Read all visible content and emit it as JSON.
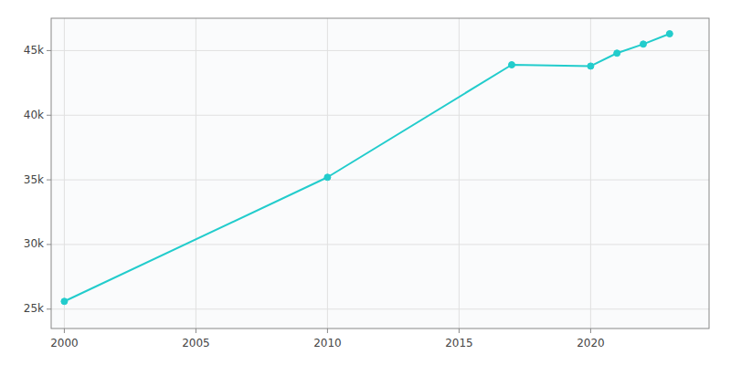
{
  "chart_data": {
    "type": "line",
    "x": [
      2000,
      2010,
      2017,
      2020,
      2021,
      2022,
      2023
    ],
    "values": [
      25600,
      35200,
      43900,
      43800,
      44800,
      45500,
      46300
    ],
    "color": "#22CCCC",
    "marker": "circle",
    "xlim": [
      1999.5,
      2024.5
    ],
    "ylim": [
      23500,
      47500
    ],
    "xticks": [
      2000,
      2005,
      2010,
      2015,
      2020
    ],
    "yticks": [
      {
        "value": 25000,
        "label": "25k"
      },
      {
        "value": 30000,
        "label": "30k"
      },
      {
        "value": 35000,
        "label": "35k"
      },
      {
        "value": 40000,
        "label": "40k"
      },
      {
        "value": 45000,
        "label": "45k"
      }
    ],
    "grid": true
  }
}
